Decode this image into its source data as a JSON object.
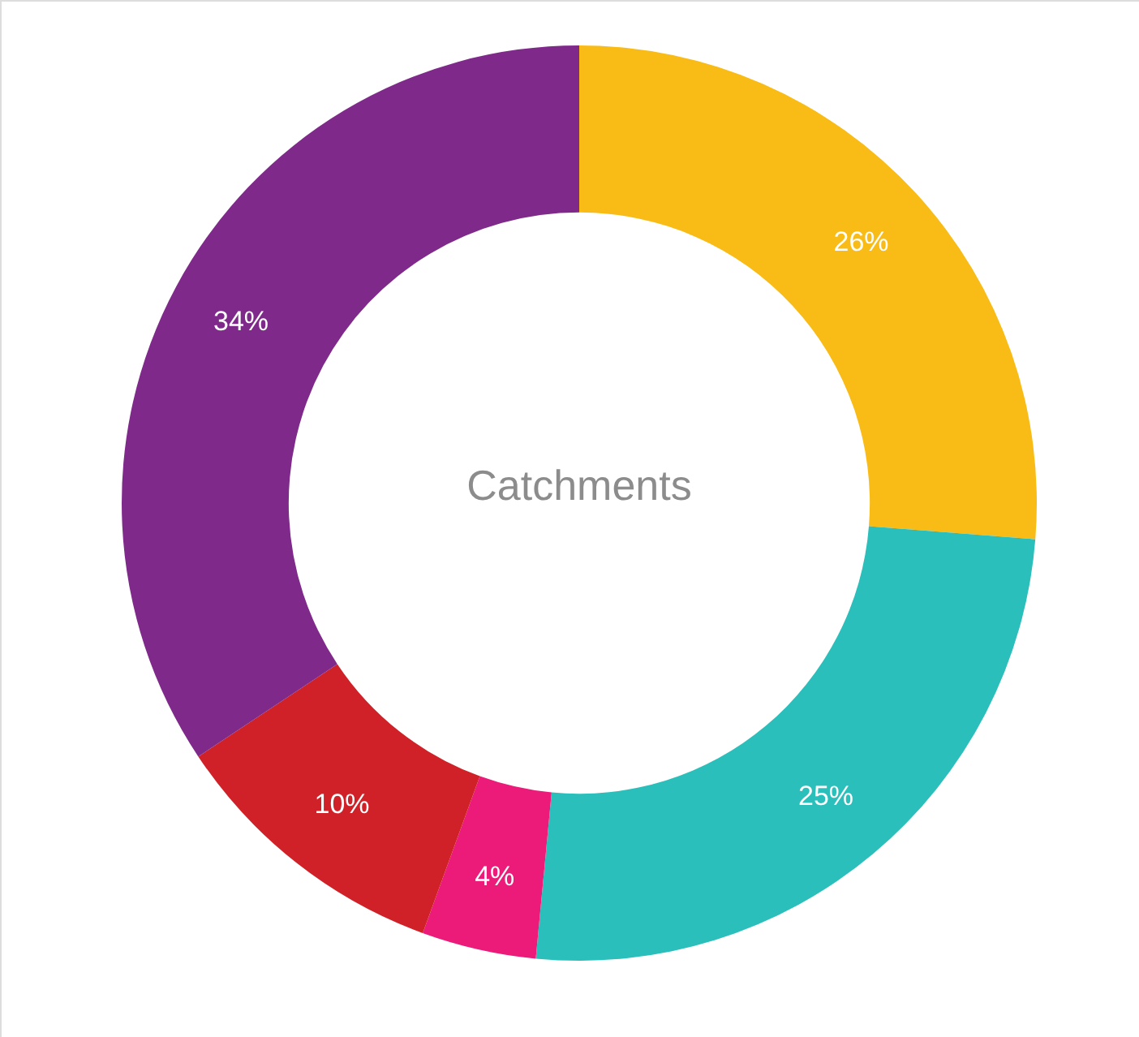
{
  "chart_data": {
    "type": "donut",
    "title": "Catchments",
    "categories": [
      null,
      null,
      null,
      null,
      null
    ],
    "values": [
      26,
      25,
      4,
      10,
      34
    ],
    "colors": [
      "#f9bb16",
      "#2bbfbb",
      "#ec1a78",
      "#cf2127",
      "#7f2a8a"
    ],
    "value_labels": [
      "26%",
      "25%",
      "4%",
      "10%",
      "34%"
    ]
  }
}
